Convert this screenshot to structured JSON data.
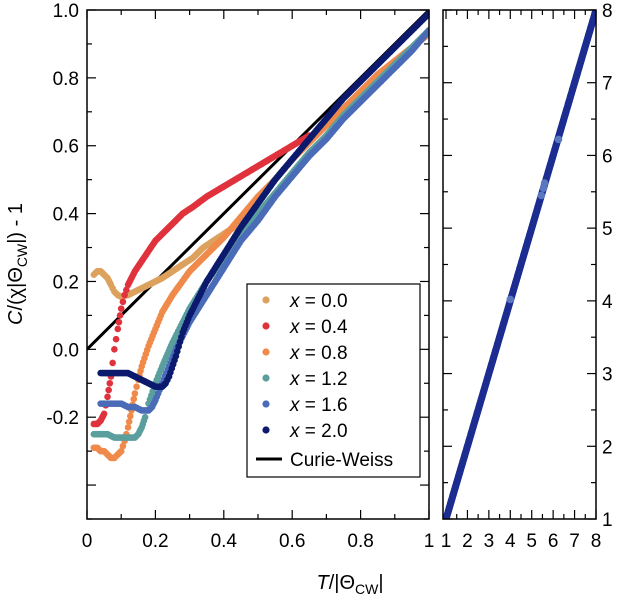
{
  "chart_data": [
    {
      "type": "scatter",
      "panel": "left",
      "xlabel": "T/|Θ_CW|",
      "ylabel": "C/(χ|Θ_CW|) - 1",
      "xlim": [
        0,
        1
      ],
      "ylim": [
        -0.5,
        1.0
      ],
      "xticks": [
        "0",
        "0.2",
        "0.4",
        "0.6",
        "0.8",
        "1"
      ],
      "yticks": [
        "-0.2",
        "0.0",
        "0.2",
        "0.4",
        "0.6",
        "0.8",
        "1.0"
      ],
      "legend_position": "lower-right",
      "series": [
        {
          "name": "x = 0.0",
          "label_var": "x",
          "label_rest": " = 0.0",
          "color": "#DDA15E",
          "x": [
            0.02,
            0.03,
            0.04,
            0.05,
            0.06,
            0.07,
            0.08,
            0.09,
            0.1,
            0.12,
            0.14,
            0.16,
            0.18,
            0.2,
            0.22,
            0.25,
            0.28,
            0.31,
            0.34,
            0.37,
            0.4,
            0.43
          ],
          "y": [
            0.22,
            0.23,
            0.23,
            0.22,
            0.21,
            0.19,
            0.17,
            0.16,
            0.155,
            0.16,
            0.17,
            0.18,
            0.19,
            0.2,
            0.21,
            0.23,
            0.25,
            0.27,
            0.3,
            0.32,
            0.34,
            0.36
          ]
        },
        {
          "name": "x = 0.4",
          "label_var": "x",
          "label_rest": " = 0.4",
          "color": "#E0323C",
          "x": [
            0.02,
            0.03,
            0.04,
            0.05,
            0.06,
            0.07,
            0.08,
            0.09,
            0.1,
            0.11,
            0.12,
            0.13,
            0.14,
            0.16,
            0.18,
            0.2,
            0.22,
            0.25,
            0.28,
            0.31,
            0.35,
            0.4,
            0.45,
            0.5,
            0.55,
            0.6,
            0.65
          ],
          "y": [
            -0.22,
            -0.22,
            -0.21,
            -0.19,
            -0.14,
            -0.08,
            0.0,
            0.06,
            0.12,
            0.16,
            0.19,
            0.21,
            0.23,
            0.26,
            0.29,
            0.32,
            0.34,
            0.37,
            0.4,
            0.42,
            0.45,
            0.48,
            0.51,
            0.54,
            0.57,
            0.6,
            0.63
          ]
        },
        {
          "name": "x = 0.8",
          "label_var": "x",
          "label_rest": " = 0.8",
          "color": "#F08A4B",
          "x": [
            0.02,
            0.03,
            0.04,
            0.05,
            0.06,
            0.07,
            0.08,
            0.09,
            0.1,
            0.11,
            0.12,
            0.13,
            0.14,
            0.15,
            0.16,
            0.18,
            0.2,
            0.22,
            0.25,
            0.3,
            0.35,
            0.4,
            0.45,
            0.5,
            0.55,
            0.6,
            0.65,
            0.7,
            0.75,
            0.8,
            0.85,
            0.9,
            0.95,
            1.0
          ],
          "y": [
            -0.29,
            -0.29,
            -0.3,
            -0.3,
            -0.31,
            -0.32,
            -0.32,
            -0.31,
            -0.3,
            -0.27,
            -0.23,
            -0.18,
            -0.13,
            -0.09,
            -0.05,
            0.01,
            0.06,
            0.11,
            0.16,
            0.23,
            0.28,
            0.33,
            0.39,
            0.45,
            0.5,
            0.56,
            0.61,
            0.66,
            0.71,
            0.76,
            0.81,
            0.85,
            0.89,
            0.93
          ]
        },
        {
          "name": "x = 1.2",
          "label_var": "x",
          "label_rest": " = 1.2",
          "color": "#5A9E9E",
          "x": [
            0.02,
            0.04,
            0.06,
            0.08,
            0.1,
            0.12,
            0.14,
            0.15,
            0.16,
            0.17,
            0.18,
            0.2,
            0.22,
            0.25,
            0.3,
            0.35,
            0.4,
            0.45,
            0.5,
            0.55,
            0.6,
            0.65,
            0.7,
            0.75,
            0.8,
            0.85,
            0.9,
            0.95,
            1.0
          ],
          "y": [
            -0.25,
            -0.25,
            -0.25,
            -0.26,
            -0.26,
            -0.26,
            -0.26,
            -0.25,
            -0.23,
            -0.2,
            -0.16,
            -0.1,
            -0.05,
            0.02,
            0.12,
            0.2,
            0.27,
            0.34,
            0.4,
            0.46,
            0.52,
            0.58,
            0.63,
            0.69,
            0.74,
            0.79,
            0.84,
            0.89,
            0.94
          ]
        },
        {
          "name": "x = 1.6",
          "label_var": "x",
          "label_rest": " = 1.6",
          "color": "#4A6CB8",
          "x": [
            0.04,
            0.06,
            0.08,
            0.1,
            0.12,
            0.14,
            0.16,
            0.18,
            0.19,
            0.2,
            0.22,
            0.24,
            0.26,
            0.3,
            0.35,
            0.4,
            0.45,
            0.5,
            0.55,
            0.6,
            0.65,
            0.7,
            0.75,
            0.8,
            0.85,
            0.9,
            0.95,
            1.0
          ],
          "y": [
            -0.16,
            -0.16,
            -0.16,
            -0.16,
            -0.17,
            -0.17,
            -0.18,
            -0.18,
            -0.17,
            -0.15,
            -0.1,
            -0.05,
            0.0,
            0.08,
            0.16,
            0.24,
            0.32,
            0.38,
            0.45,
            0.51,
            0.57,
            0.62,
            0.68,
            0.73,
            0.78,
            0.83,
            0.88,
            0.94
          ]
        },
        {
          "name": "x = 2.0",
          "label_var": "x",
          "label_rest": " = 2.0",
          "color": "#0C1A6E",
          "x": [
            0.04,
            0.06,
            0.08,
            0.1,
            0.12,
            0.14,
            0.16,
            0.18,
            0.2,
            0.22,
            0.23,
            0.24,
            0.26,
            0.28,
            0.3,
            0.35,
            0.4,
            0.45,
            0.5,
            0.55,
            0.6,
            0.65,
            0.7,
            0.75,
            0.8,
            0.85,
            0.9,
            0.95,
            1.0
          ],
          "y": [
            -0.07,
            -0.07,
            -0.07,
            -0.07,
            -0.07,
            -0.08,
            -0.09,
            -0.1,
            -0.11,
            -0.11,
            -0.1,
            -0.08,
            -0.02,
            0.05,
            0.1,
            0.2,
            0.28,
            0.36,
            0.43,
            0.5,
            0.56,
            0.62,
            0.68,
            0.74,
            0.79,
            0.84,
            0.89,
            0.94,
            0.99
          ]
        }
      ],
      "reference_line": {
        "name": "Curie-Weiss",
        "color": "#000000",
        "x": [
          0,
          1
        ],
        "y": [
          0,
          1
        ]
      }
    },
    {
      "type": "scatter",
      "panel": "right",
      "xlim": [
        1,
        8
      ],
      "ylim": [
        1,
        8
      ],
      "xticks": [
        "1",
        "2",
        "3",
        "4",
        "5",
        "6",
        "7",
        "8"
      ],
      "yticks": [
        "1",
        "2",
        "3",
        "4",
        "5",
        "6",
        "7",
        "8"
      ],
      "series": [
        {
          "name": "x = 2.0",
          "color": "#1C2C90",
          "x": [
            1.0,
            1.25,
            1.5,
            1.75,
            2.0,
            2.25,
            2.5,
            2.75,
            3.0,
            3.25,
            3.5,
            3.75,
            4.0,
            4.25,
            4.5,
            4.75,
            5.0,
            5.25,
            5.5,
            5.75,
            6.0,
            6.25,
            6.5,
            6.75,
            7.0,
            7.25,
            7.5,
            7.75,
            8.0
          ],
          "y": [
            1.0,
            1.25,
            1.5,
            1.75,
            2.0,
            2.25,
            2.5,
            2.75,
            3.0,
            3.25,
            3.5,
            3.75,
            4.0,
            4.25,
            4.5,
            4.75,
            5.0,
            5.25,
            5.5,
            5.75,
            6.0,
            6.25,
            6.5,
            6.75,
            7.0,
            7.25,
            7.5,
            7.75,
            8.0
          ]
        },
        {
          "name": "x = 1.6",
          "color": "#5A78C0",
          "x": [
            5.45,
            5.55,
            5.6,
            6.25,
            4.0
          ],
          "y": [
            5.45,
            5.55,
            5.62,
            6.22,
            4.02
          ]
        }
      ]
    }
  ]
}
